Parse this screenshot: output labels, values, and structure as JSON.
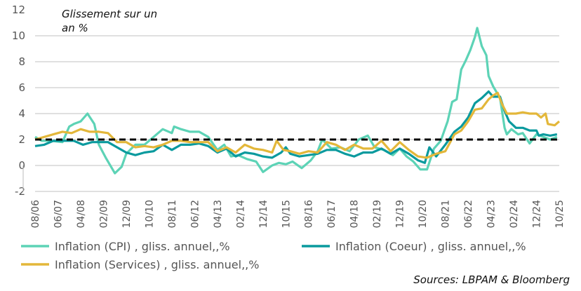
{
  "chart_data": {
    "type": "line",
    "title": "Glissement sur un an %",
    "title_lines": [
      "Glissement sur un",
      "an %"
    ],
    "source": "Sources: LBPAM & Bloomberg",
    "ylim": [
      -2,
      12
    ],
    "yticks": [
      -2,
      0,
      2,
      4,
      6,
      8,
      10,
      12
    ],
    "xlim": [
      "2006-08",
      "2025-10"
    ],
    "xticks": [
      "08/06",
      "06/07",
      "04/08",
      "02/09",
      "12/09",
      "10/10",
      "08/11",
      "06/12",
      "04/13",
      "02/14",
      "12/14",
      "10/15",
      "08/16",
      "06/17",
      "04/18",
      "02/19",
      "12/19",
      "10/20",
      "08/21",
      "06/22",
      "04/23",
      "02/24",
      "12/24",
      "10/25"
    ],
    "grid": true,
    "legend_placement": "bottom",
    "reference_line": {
      "value": 2,
      "style": "dashed",
      "color": "#000000"
    },
    "series": [
      {
        "name": "Inflation (CPI) , gliss. annuel,,%",
        "color": "#5DD3B6",
        "points": [
          [
            "2006-08",
            2.2
          ],
          [
            "2006-11",
            1.9
          ],
          [
            "2007-03",
            1.9
          ],
          [
            "2007-08",
            1.8
          ],
          [
            "2007-11",
            3.0
          ],
          [
            "2008-01",
            3.2
          ],
          [
            "2008-04",
            3.4
          ],
          [
            "2008-07",
            4.0
          ],
          [
            "2008-10",
            3.2
          ],
          [
            "2008-12",
            1.6
          ],
          [
            "2009-03",
            0.6
          ],
          [
            "2009-07",
            -0.6
          ],
          [
            "2009-10",
            -0.1
          ],
          [
            "2009-12",
            0.9
          ],
          [
            "2010-04",
            1.6
          ],
          [
            "2010-08",
            1.6
          ],
          [
            "2010-12",
            2.2
          ],
          [
            "2011-04",
            2.8
          ],
          [
            "2011-08",
            2.5
          ],
          [
            "2011-09",
            3.0
          ],
          [
            "2011-12",
            2.8
          ],
          [
            "2012-04",
            2.6
          ],
          [
            "2012-08",
            2.6
          ],
          [
            "2012-12",
            2.2
          ],
          [
            "2013-04",
            1.2
          ],
          [
            "2013-07",
            1.6
          ],
          [
            "2013-10",
            0.7
          ],
          [
            "2014-01",
            0.8
          ],
          [
            "2014-05",
            0.5
          ],
          [
            "2014-09",
            0.3
          ],
          [
            "2014-12",
            -0.5
          ],
          [
            "2015-04",
            0.0
          ],
          [
            "2015-07",
            0.2
          ],
          [
            "2015-10",
            0.1
          ],
          [
            "2016-01",
            0.3
          ],
          [
            "2016-05",
            -0.2
          ],
          [
            "2016-09",
            0.4
          ],
          [
            "2016-12",
            1.1
          ],
          [
            "2017-02",
            2.0
          ],
          [
            "2017-06",
            1.3
          ],
          [
            "2017-10",
            1.4
          ],
          [
            "2018-02",
            1.1
          ],
          [
            "2018-06",
            2.0
          ],
          [
            "2018-10",
            2.3
          ],
          [
            "2019-01",
            1.4
          ],
          [
            "2019-05",
            1.2
          ],
          [
            "2019-09",
            0.8
          ],
          [
            "2019-12",
            1.3
          ],
          [
            "2020-03",
            0.7
          ],
          [
            "2020-06",
            0.3
          ],
          [
            "2020-09",
            -0.3
          ],
          [
            "2020-12",
            -0.3
          ],
          [
            "2021-03",
            1.3
          ],
          [
            "2021-06",
            1.9
          ],
          [
            "2021-09",
            3.4
          ],
          [
            "2021-11",
            4.9
          ],
          [
            "2022-01",
            5.1
          ],
          [
            "2022-03",
            7.4
          ],
          [
            "2022-05",
            8.1
          ],
          [
            "2022-07",
            8.9
          ],
          [
            "2022-09",
            9.9
          ],
          [
            "2022-10",
            10.6
          ],
          [
            "2022-12",
            9.2
          ],
          [
            "2023-02",
            8.5
          ],
          [
            "2023-03",
            6.9
          ],
          [
            "2023-05",
            6.1
          ],
          [
            "2023-08",
            5.2
          ],
          [
            "2023-10",
            2.9
          ],
          [
            "2023-11",
            2.4
          ],
          [
            "2024-01",
            2.8
          ],
          [
            "2024-04",
            2.4
          ],
          [
            "2024-06",
            2.5
          ],
          [
            "2024-09",
            1.7
          ],
          [
            "2024-12",
            2.4
          ],
          [
            "2025-03",
            2.2
          ],
          [
            "2025-06",
            2.0
          ],
          [
            "2025-09",
            2.2
          ]
        ]
      },
      {
        "name": "Inflation (Coeur) , gliss. annuel,,%",
        "color": "#0A9A9E",
        "points": [
          [
            "2006-08",
            1.5
          ],
          [
            "2006-12",
            1.6
          ],
          [
            "2007-04",
            1.9
          ],
          [
            "2007-09",
            1.9
          ],
          [
            "2008-01",
            1.9
          ],
          [
            "2008-05",
            1.6
          ],
          [
            "2008-09",
            1.8
          ],
          [
            "2008-12",
            1.8
          ],
          [
            "2009-04",
            1.8
          ],
          [
            "2009-08",
            1.4
          ],
          [
            "2009-12",
            1.0
          ],
          [
            "2010-04",
            0.8
          ],
          [
            "2010-08",
            1.0
          ],
          [
            "2010-12",
            1.1
          ],
          [
            "2011-04",
            1.6
          ],
          [
            "2011-08",
            1.2
          ],
          [
            "2011-12",
            1.6
          ],
          [
            "2012-04",
            1.6
          ],
          [
            "2012-08",
            1.7
          ],
          [
            "2012-12",
            1.5
          ],
          [
            "2013-04",
            1.0
          ],
          [
            "2013-08",
            1.3
          ],
          [
            "2013-12",
            0.7
          ],
          [
            "2014-04",
            1.0
          ],
          [
            "2014-08",
            0.9
          ],
          [
            "2014-12",
            0.7
          ],
          [
            "2015-04",
            0.6
          ],
          [
            "2015-08",
            1.0
          ],
          [
            "2015-10",
            1.4
          ],
          [
            "2015-12",
            0.9
          ],
          [
            "2016-04",
            0.7
          ],
          [
            "2016-08",
            0.8
          ],
          [
            "2016-12",
            0.9
          ],
          [
            "2017-04",
            1.2
          ],
          [
            "2017-08",
            1.2
          ],
          [
            "2017-12",
            0.9
          ],
          [
            "2018-04",
            0.7
          ],
          [
            "2018-08",
            1.0
          ],
          [
            "2018-12",
            1.0
          ],
          [
            "2019-04",
            1.3
          ],
          [
            "2019-08",
            0.9
          ],
          [
            "2019-12",
            1.3
          ],
          [
            "2020-04",
            0.9
          ],
          [
            "2020-08",
            0.4
          ],
          [
            "2020-11",
            0.2
          ],
          [
            "2021-01",
            1.4
          ],
          [
            "2021-04",
            0.7
          ],
          [
            "2021-08",
            1.6
          ],
          [
            "2021-12",
            2.6
          ],
          [
            "2022-03",
            3.0
          ],
          [
            "2022-06",
            3.7
          ],
          [
            "2022-09",
            4.8
          ],
          [
            "2022-12",
            5.2
          ],
          [
            "2023-03",
            5.7
          ],
          [
            "2023-05",
            5.3
          ],
          [
            "2023-08",
            5.3
          ],
          [
            "2023-10",
            4.2
          ],
          [
            "2023-12",
            3.4
          ],
          [
            "2024-03",
            2.9
          ],
          [
            "2024-06",
            2.9
          ],
          [
            "2024-09",
            2.7
          ],
          [
            "2024-11",
            2.7
          ],
          [
            "2024-12",
            2.7
          ],
          [
            "2025-01",
            2.3
          ],
          [
            "2025-03",
            2.4
          ],
          [
            "2025-06",
            2.3
          ],
          [
            "2025-09",
            2.4
          ]
        ]
      },
      {
        "name": "Inflation (Services) , gliss. annuel,,%",
        "color": "#E3B73A",
        "points": [
          [
            "2006-08",
            2.0
          ],
          [
            "2006-12",
            2.2
          ],
          [
            "2007-04",
            2.4
          ],
          [
            "2007-08",
            2.6
          ],
          [
            "2007-12",
            2.5
          ],
          [
            "2008-04",
            2.8
          ],
          [
            "2008-08",
            2.6
          ],
          [
            "2008-12",
            2.6
          ],
          [
            "2009-04",
            2.5
          ],
          [
            "2009-08",
            1.8
          ],
          [
            "2009-12",
            1.8
          ],
          [
            "2010-04",
            1.4
          ],
          [
            "2010-08",
            1.5
          ],
          [
            "2010-12",
            1.4
          ],
          [
            "2011-04",
            1.6
          ],
          [
            "2011-08",
            1.9
          ],
          [
            "2011-12",
            1.9
          ],
          [
            "2012-04",
            1.8
          ],
          [
            "2012-08",
            1.8
          ],
          [
            "2012-12",
            1.8
          ],
          [
            "2013-04",
            1.1
          ],
          [
            "2013-08",
            1.4
          ],
          [
            "2013-12",
            1.0
          ],
          [
            "2014-04",
            1.6
          ],
          [
            "2014-08",
            1.3
          ],
          [
            "2014-12",
            1.2
          ],
          [
            "2015-04",
            1.0
          ],
          [
            "2015-06",
            1.9
          ],
          [
            "2015-09",
            1.2
          ],
          [
            "2015-12",
            1.1
          ],
          [
            "2016-04",
            0.9
          ],
          [
            "2016-08",
            1.1
          ],
          [
            "2016-12",
            1.0
          ],
          [
            "2017-04",
            1.8
          ],
          [
            "2017-08",
            1.6
          ],
          [
            "2017-12",
            1.2
          ],
          [
            "2018-04",
            1.6
          ],
          [
            "2018-08",
            1.3
          ],
          [
            "2018-12",
            1.3
          ],
          [
            "2019-04",
            1.9
          ],
          [
            "2019-08",
            1.1
          ],
          [
            "2019-12",
            1.8
          ],
          [
            "2020-04",
            1.2
          ],
          [
            "2020-08",
            0.7
          ],
          [
            "2020-12",
            0.6
          ],
          [
            "2021-04",
            0.9
          ],
          [
            "2021-08",
            1.1
          ],
          [
            "2021-12",
            2.4
          ],
          [
            "2022-03",
            2.7
          ],
          [
            "2022-06",
            3.4
          ],
          [
            "2022-09",
            4.3
          ],
          [
            "2022-12",
            4.4
          ],
          [
            "2023-03",
            5.1
          ],
          [
            "2023-05",
            5.4
          ],
          [
            "2023-07",
            5.6
          ],
          [
            "2023-09",
            4.7
          ],
          [
            "2023-11",
            4.0
          ],
          [
            "2024-03",
            4.0
          ],
          [
            "2024-06",
            4.1
          ],
          [
            "2024-09",
            4.0
          ],
          [
            "2024-12",
            4.0
          ],
          [
            "2025-02",
            3.7
          ],
          [
            "2025-04",
            4.0
          ],
          [
            "2025-05",
            3.2
          ],
          [
            "2025-08",
            3.1
          ],
          [
            "2025-10",
            3.4
          ]
        ]
      }
    ]
  }
}
